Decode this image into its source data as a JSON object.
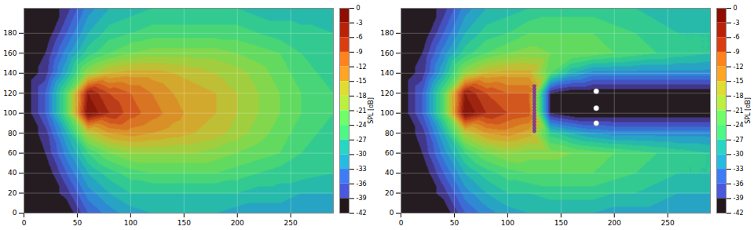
{
  "chart_data": [
    {
      "type": "heatmap",
      "xlim": [
        0,
        290
      ],
      "xticks": [
        0,
        50,
        100,
        150,
        200,
        250
      ],
      "ylim": [
        0,
        205
      ],
      "yticks": [
        0,
        20,
        40,
        60,
        80,
        100,
        120,
        140,
        160,
        180
      ],
      "grid": true,
      "color": "turbo",
      "x": [
        0,
        20,
        40,
        60,
        80,
        100,
        120,
        140,
        160,
        180,
        200,
        220,
        240,
        260,
        290
      ],
      "y": [
        0,
        20,
        40,
        60,
        80,
        100,
        120,
        140,
        160,
        180,
        205
      ],
      "z": [
        [
          -42,
          -42,
          -42,
          -36,
          -33,
          -31,
          -30,
          -30,
          -30,
          -30,
          -31,
          -31,
          -31,
          -32,
          -32
        ],
        [
          -42,
          -42,
          -39,
          -33,
          -30,
          -28,
          -28,
          -28,
          -28,
          -28,
          -28,
          -29,
          -29,
          -30,
          -30
        ],
        [
          -42,
          -42,
          -36,
          -30,
          -27,
          -25,
          -24,
          -24,
          -24,
          -24,
          -25,
          -26,
          -27,
          -27,
          -28
        ],
        [
          -42,
          -40,
          -33,
          -26,
          -22,
          -20,
          -20,
          -20,
          -20,
          -21,
          -22,
          -23,
          -24,
          -26,
          -27
        ],
        [
          -42,
          -39,
          -30,
          -18,
          -14,
          -13,
          -14,
          -15,
          -16,
          -17,
          -19,
          -21,
          -23,
          -25,
          -27
        ],
        [
          -42,
          -36,
          -24,
          -2,
          -6,
          -9,
          -11,
          -13,
          -15,
          -16,
          -18,
          -20,
          -22,
          -24,
          -26
        ],
        [
          -42,
          -36,
          -24,
          -4,
          -8,
          -10,
          -12,
          -14,
          -15,
          -16,
          -18,
          -20,
          -22,
          -24,
          -26
        ],
        [
          -42,
          -39,
          -30,
          -20,
          -16,
          -15,
          -15,
          -16,
          -17,
          -18,
          -19,
          -21,
          -23,
          -25,
          -27
        ],
        [
          -42,
          -40,
          -33,
          -27,
          -24,
          -22,
          -21,
          -21,
          -21,
          -21,
          -22,
          -23,
          -24,
          -26,
          -27
        ],
        [
          -42,
          -42,
          -36,
          -30,
          -27,
          -26,
          -25,
          -25,
          -25,
          -25,
          -25,
          -26,
          -27,
          -27,
          -28
        ],
        [
          -42,
          -42,
          -39,
          -33,
          -30,
          -29,
          -28,
          -28,
          -28,
          -28,
          -28,
          -29,
          -29,
          -30,
          -30
        ]
      ],
      "colorbar": {
        "range": [
          -42,
          0
        ],
        "ticks": [
          0,
          -3,
          -6,
          -9,
          -12,
          -15,
          -18,
          -21,
          -24,
          -27,
          -30,
          -33,
          -36,
          -39,
          -42
        ],
        "label": "SPL [dB]"
      }
    },
    {
      "type": "heatmap",
      "xlim": [
        0,
        290
      ],
      "xticks": [
        0,
        50,
        100,
        150,
        200,
        250
      ],
      "ylim": [
        0,
        205
      ],
      "yticks": [
        0,
        20,
        40,
        60,
        80,
        100,
        120,
        140,
        160,
        180
      ],
      "grid": true,
      "color": "turbo",
      "x": [
        0,
        20,
        40,
        60,
        80,
        100,
        120,
        140,
        160,
        180,
        200,
        220,
        240,
        260,
        290
      ],
      "y": [
        0,
        20,
        40,
        60,
        80,
        100,
        120,
        140,
        160,
        180,
        205
      ],
      "z": [
        [
          -42,
          -42,
          -42,
          -36,
          -33,
          -31,
          -30,
          -30,
          -30,
          -30,
          -31,
          -31,
          -31,
          -32,
          -32
        ],
        [
          -42,
          -42,
          -39,
          -33,
          -30,
          -28,
          -28,
          -27,
          -27,
          -27,
          -28,
          -28,
          -29,
          -30,
          -30
        ],
        [
          -42,
          -42,
          -36,
          -30,
          -27,
          -25,
          -24,
          -24,
          -24,
          -24,
          -25,
          -26,
          -27,
          -28,
          -28
        ],
        [
          -42,
          -40,
          -33,
          -26,
          -22,
          -20,
          -21,
          -21,
          -22,
          -23,
          -24,
          -25,
          -26,
          -27,
          -28
        ],
        [
          -42,
          -39,
          -30,
          -18,
          -14,
          -13,
          -15,
          -27,
          -30,
          -32,
          -33,
          -33,
          -33,
          -33,
          -33
        ],
        [
          -42,
          -36,
          -24,
          -2,
          -6,
          -8,
          -9,
          -40,
          -42,
          -42,
          -42,
          -42,
          -42,
          -42,
          -42
        ],
        [
          -42,
          -36,
          -24,
          -4,
          -8,
          -10,
          -10,
          -40,
          -42,
          -42,
          -42,
          -42,
          -42,
          -42,
          -42
        ],
        [
          -42,
          -39,
          -30,
          -20,
          -16,
          -15,
          -15,
          -24,
          -30,
          -33,
          -33,
          -33,
          -33,
          -33,
          -33
        ],
        [
          -42,
          -40,
          -33,
          -27,
          -24,
          -22,
          -21,
          -22,
          -22,
          -23,
          -24,
          -25,
          -26,
          -27,
          -28
        ],
        [
          -42,
          -42,
          -36,
          -30,
          -27,
          -26,
          -24,
          -24,
          -24,
          -24,
          -25,
          -26,
          -27,
          -28,
          -28
        ],
        [
          -42,
          -42,
          -39,
          -33,
          -30,
          -29,
          -28,
          -27,
          -27,
          -27,
          -28,
          -28,
          -29,
          -30,
          -30
        ]
      ],
      "points": [
        {
          "x": [
            125,
            125,
            125,
            125,
            125,
            125,
            125,
            125,
            125,
            125,
            125,
            125,
            125,
            125,
            125,
            125
          ],
          "y": [
            82,
            85,
            88,
            91,
            94,
            97,
            100,
            103,
            106,
            109,
            112,
            115,
            118,
            121,
            124,
            127
          ],
          "color": "#c0306a"
        },
        {
          "x": [
            183,
            183,
            183
          ],
          "y": [
            122,
            105,
            90
          ],
          "color": "white"
        }
      ],
      "colorbar": {
        "range": [
          -42,
          0
        ],
        "ticks": [
          0,
          -3,
          -6,
          -9,
          -12,
          -15,
          -18,
          -21,
          -24,
          -27,
          -30,
          -33,
          -36,
          -39,
          -42
        ],
        "label": "SPL [dB]"
      }
    }
  ]
}
